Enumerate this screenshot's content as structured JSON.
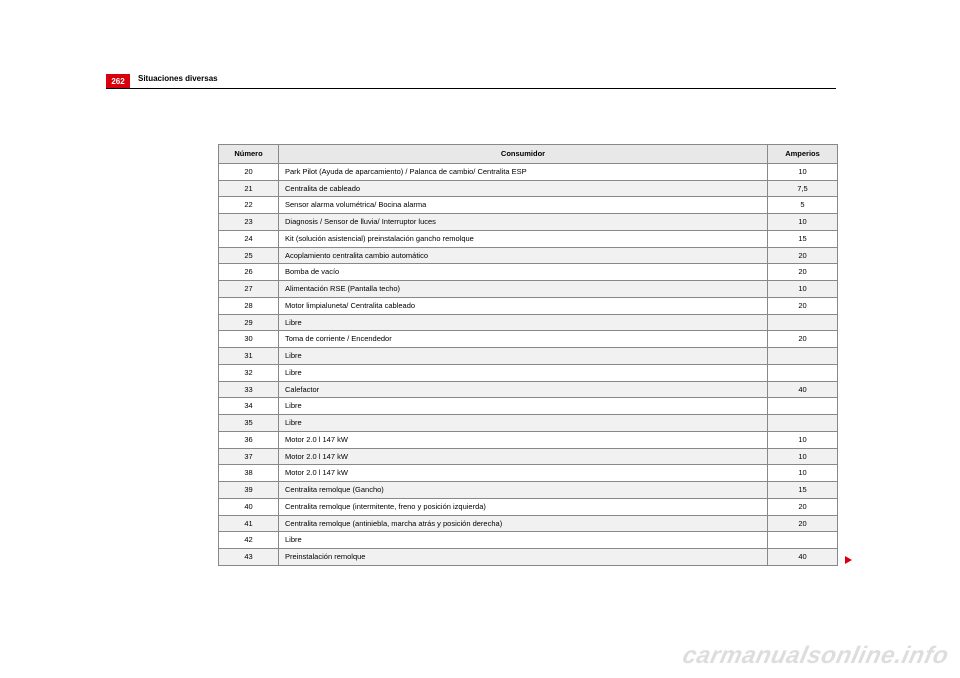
{
  "page": {
    "number": "262",
    "section_title": "Situaciones diversas"
  },
  "table": {
    "headers": {
      "numero": "Número",
      "consumidor": "Consumidor",
      "amperios": "Amperios"
    },
    "rows": [
      {
        "n": "20",
        "c": "Park Pilot (Ayuda de aparcamiento) / Palanca de cambio/ Centralita ESP",
        "a": "10"
      },
      {
        "n": "21",
        "c": "Centralita de cableado",
        "a": "7,5"
      },
      {
        "n": "22",
        "c": "Sensor alarma volumétrica/ Bocina alarma",
        "a": "5"
      },
      {
        "n": "23",
        "c": "Diagnosis / Sensor de lluvia/ Interruptor luces",
        "a": "10"
      },
      {
        "n": "24",
        "c": "Kit (solución asistencial) preinstalación gancho remolque",
        "a": "15"
      },
      {
        "n": "25",
        "c": "Acoplamiento centralita cambio automático",
        "a": "20"
      },
      {
        "n": "26",
        "c": "Bomba de vacío",
        "a": "20"
      },
      {
        "n": "27",
        "c": "Alimentación RSE (Pantalla techo)",
        "a": "10"
      },
      {
        "n": "28",
        "c": "Motor limpialuneta/ Centralita cableado",
        "a": "20"
      },
      {
        "n": "29",
        "c": "Libre",
        "a": ""
      },
      {
        "n": "30",
        "c": "Toma de corriente / Encendedor",
        "a": "20"
      },
      {
        "n": "31",
        "c": "Libre",
        "a": ""
      },
      {
        "n": "32",
        "c": "Libre",
        "a": ""
      },
      {
        "n": "33",
        "c": "Calefactor",
        "a": "40"
      },
      {
        "n": "34",
        "c": "Libre",
        "a": ""
      },
      {
        "n": "35",
        "c": "Libre",
        "a": ""
      },
      {
        "n": "36",
        "c": "Motor 2.0 l 147 kW",
        "a": "10"
      },
      {
        "n": "37",
        "c": "Motor 2.0 l 147 kW",
        "a": "10"
      },
      {
        "n": "38",
        "c": "Motor 2.0 l 147 kW",
        "a": "10"
      },
      {
        "n": "39",
        "c": "Centralita remolque (Gancho)",
        "a": "15"
      },
      {
        "n": "40",
        "c": "Centralita remolque (intermitente, freno y posición izquierda)",
        "a": "20"
      },
      {
        "n": "41",
        "c": "Centralita remolque (antiniebla, marcha atrás y posición derecha)",
        "a": "20"
      },
      {
        "n": "42",
        "c": "Libre",
        "a": ""
      },
      {
        "n": "43",
        "c": "Preinstalación remolque",
        "a": "40"
      }
    ]
  },
  "watermark": "carmanualsonline.info"
}
